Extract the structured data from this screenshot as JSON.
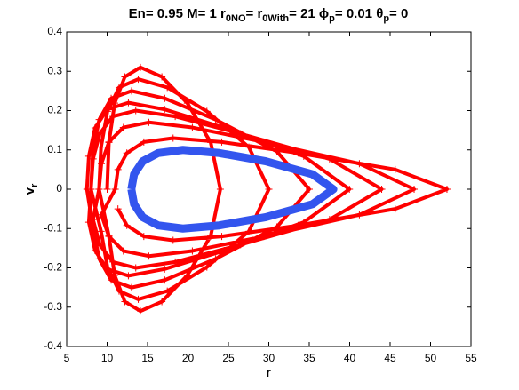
{
  "chart_data": {
    "type": "scatter",
    "title": [
      "En= 0.95 M= 1 r",
      "0NO",
      "= r",
      "0With",
      "= 21 ϕ",
      "p",
      "= 0.01 θ",
      "p",
      "= 0"
    ],
    "xlabel": "r",
    "ylabel": [
      "v",
      "r"
    ],
    "xlim": [
      5,
      55
    ],
    "xticks": [
      5,
      10,
      15,
      20,
      25,
      30,
      35,
      40,
      45,
      50,
      55
    ],
    "ylim": [
      -0.4,
      0.4
    ],
    "yticks": [
      -0.4,
      -0.3,
      -0.2,
      -0.1,
      0,
      0.1,
      0.2,
      0.3,
      0.4
    ],
    "grid": false,
    "series": [
      {
        "color": "#ff0000",
        "marker": "+",
        "x": [
          10,
          10.22,
          10.94,
          12.19,
          14.12,
          16.77,
          19.92,
          22.81,
          24,
          22.81,
          19.92,
          16.77,
          14.12,
          12.19,
          10.94,
          10.22,
          9,
          9.25,
          10.04,
          11.48,
          13.85,
          17.44,
          22.34,
          27.53,
          30,
          27.53,
          22.34,
          17.44,
          13.85,
          11.48,
          10.04,
          9.25,
          8,
          8.24,
          9.02,
          10.5,
          13.02,
          17.13,
          23.42,
          31,
          35,
          31,
          23.42,
          17.13,
          13.02,
          10.5,
          9.02,
          8.24,
          7.5,
          7.74,
          8.51,
          10.01,
          12.63,
          17.11,
          24.48,
          34.32,
          39.97,
          34.32,
          24.48,
          17.11,
          12.63,
          10.01,
          8.51,
          7.74,
          8,
          8.26,
          9.09,
          10.7,
          13.54,
          18.42,
          26.5,
          37.51,
          43.96,
          37.51,
          26.5,
          18.42,
          13.54,
          10.7,
          9.09,
          8.26,
          9,
          9.29,
          10.22,
          12.01,
          15.16,
          20.54,
          29.38,
          41.2,
          47.97,
          41.2,
          29.38,
          20.54,
          15.16,
          12.01,
          10.22,
          9.29,
          11,
          11.34,
          12.44,
          14.54,
          18.16,
          24.18,
          33.63,
          45.63,
          52.03,
          45.63,
          33.63,
          24.18,
          18.16,
          14.54,
          12.44,
          11.34
        ],
        "y": [
          0,
          0.119,
          0.219,
          0.286,
          0.31,
          0.286,
          0.219,
          0.119,
          0,
          -0.119,
          -0.219,
          -0.286,
          -0.31,
          -0.286,
          -0.219,
          -0.119,
          0,
          0.107,
          0.198,
          0.259,
          0.28,
          0.259,
          0.198,
          0.107,
          0,
          -0.107,
          -0.198,
          -0.259,
          -0.28,
          -0.259,
          -0.198,
          -0.107,
          0,
          0.096,
          0.177,
          0.231,
          0.25,
          0.231,
          0.177,
          0.096,
          0,
          -0.096,
          -0.177,
          -0.231,
          -0.25,
          -0.231,
          -0.177,
          -0.096,
          0,
          0.084,
          0.156,
          0.203,
          0.22,
          0.203,
          0.156,
          0.084,
          0,
          -0.084,
          -0.156,
          -0.203,
          -0.22,
          -0.203,
          -0.156,
          -0.084,
          0,
          0.077,
          0.141,
          0.185,
          0.2,
          0.185,
          0.141,
          0.077,
          0,
          -0.077,
          -0.141,
          -0.185,
          -0.2,
          -0.185,
          -0.141,
          -0.077,
          0,
          0.065,
          0.12,
          0.157,
          0.17,
          0.157,
          0.12,
          0.065,
          0,
          -0.065,
          -0.12,
          -0.157,
          -0.17,
          -0.157,
          -0.12,
          -0.065,
          0,
          0.05,
          0.092,
          0.12,
          0.13,
          0.12,
          0.092,
          0.05,
          0,
          -0.05,
          -0.092,
          -0.12,
          -0.13,
          -0.12,
          -0.092,
          -0.05
        ]
      },
      {
        "color": "#3355ee",
        "marker": "line",
        "x": [
          13,
          13.33,
          14.39,
          16.31,
          19.37,
          23.86,
          29.62,
          35.41,
          37.98,
          35.41,
          29.62,
          23.86,
          19.37,
          16.31,
          14.39,
          13.33,
          13
        ],
        "y": [
          0,
          0.038,
          0.071,
          0.092,
          0.1,
          0.092,
          0.071,
          0.038,
          0,
          -0.038,
          -0.071,
          -0.092,
          -0.1,
          -0.092,
          -0.071,
          -0.038,
          0
        ]
      }
    ]
  }
}
